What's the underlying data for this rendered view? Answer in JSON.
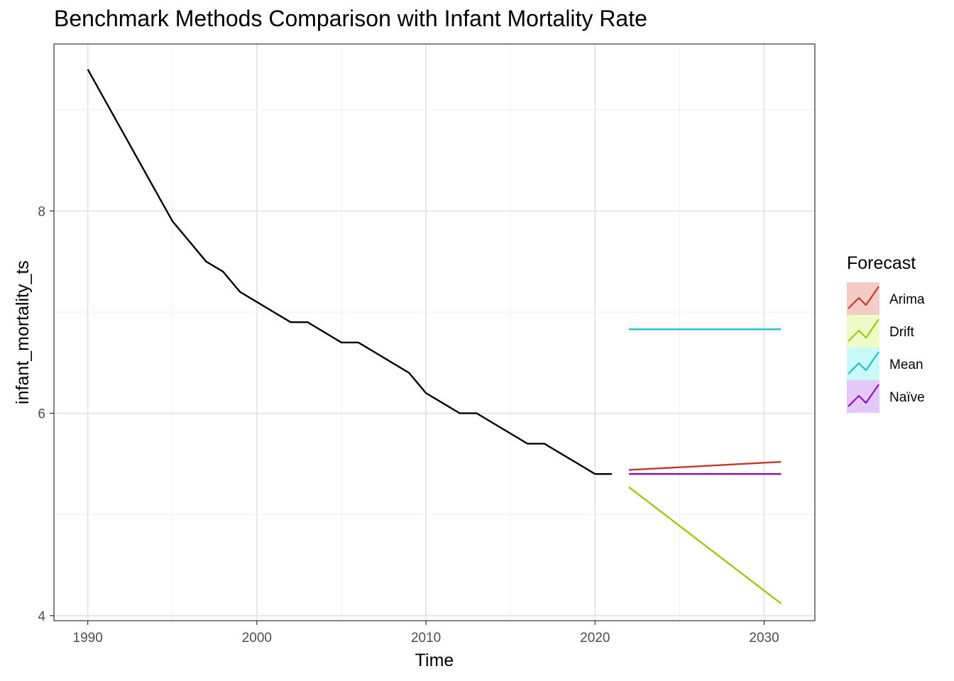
{
  "chart_data": {
    "type": "line",
    "title": "Benchmark Methods Comparison with Infant Mortality Rate",
    "xlabel": "Time",
    "ylabel": "infant_mortality_ts",
    "xlim": [
      1988,
      2033
    ],
    "ylim": [
      3.95,
      9.65
    ],
    "x_ticks": [
      1990,
      2000,
      2010,
      2020,
      2030
    ],
    "y_ticks": [
      4,
      6,
      8
    ],
    "grid": true,
    "legend": {
      "title": "Forecast",
      "position": "right"
    },
    "observed": {
      "color": "#000000",
      "x": [
        1990,
        1995,
        1997,
        1998,
        1999,
        2000,
        2001,
        2002,
        2003,
        2004,
        2005,
        2006,
        2007,
        2008,
        2009,
        2010,
        2011,
        2012,
        2013,
        2014,
        2015,
        2016,
        2017,
        2018,
        2019,
        2020,
        2021
      ],
      "y": [
        9.4,
        7.9,
        7.5,
        7.4,
        7.2,
        7.1,
        7.0,
        6.9,
        6.9,
        6.8,
        6.7,
        6.7,
        6.6,
        6.5,
        6.4,
        6.2,
        6.1,
        6.0,
        6.0,
        5.9,
        5.8,
        5.7,
        5.7,
        5.6,
        5.5,
        5.4,
        5.4
      ]
    },
    "series": [
      {
        "name": "Arima",
        "color": "#c0392b",
        "fill": "#f5cbc7",
        "x": [
          2022,
          2031
        ],
        "y": [
          5.44,
          5.52
        ]
      },
      {
        "name": "Drift",
        "color": "#a3c50e",
        "fill": "#ecfbc8",
        "x": [
          2022,
          2031
        ],
        "y": [
          5.27,
          4.12
        ]
      },
      {
        "name": "Mean",
        "color": "#1fc3c3",
        "fill": "#c9f9f9",
        "x": [
          2022,
          2031
        ],
        "y": [
          6.83,
          6.83
        ]
      },
      {
        "name": "Naïve",
        "color": "#8e0fc9",
        "fill": "#e4c8f8",
        "x": [
          2022,
          2031
        ],
        "y": [
          5.4,
          5.4
        ]
      }
    ]
  }
}
